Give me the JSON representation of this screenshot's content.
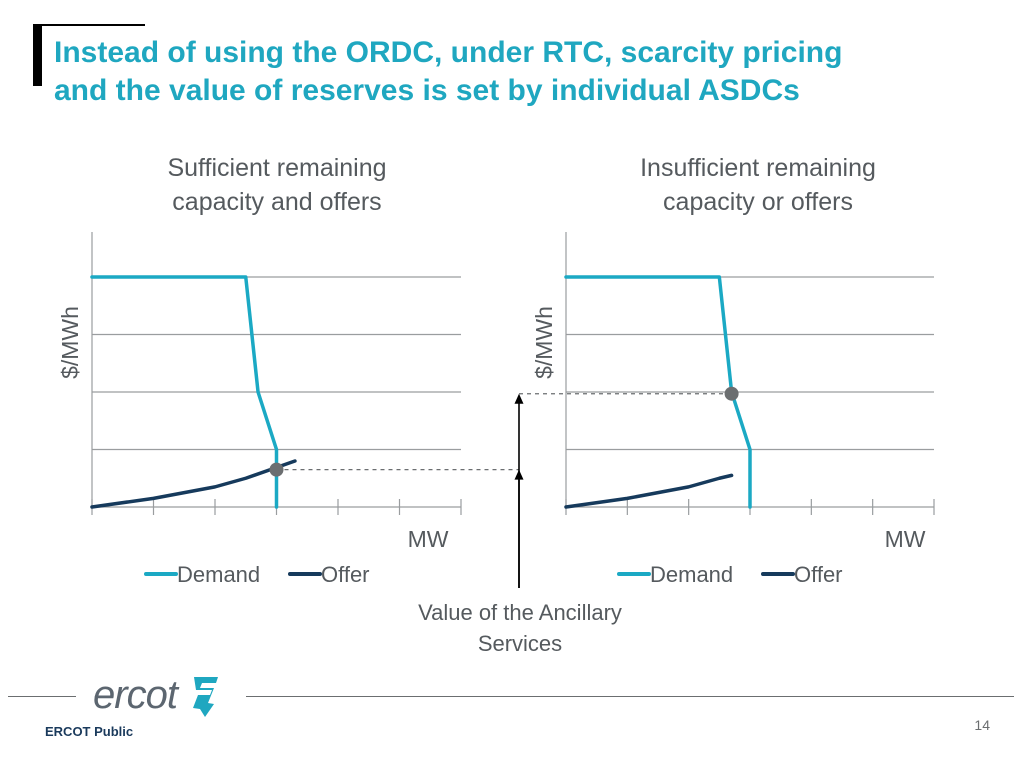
{
  "slide": {
    "title_line1": "Instead of using the ORDC, under RTC, scarcity pricing",
    "title_line2": "and the value of reserves is set by individual ASDCs",
    "annotation_line1": "Value of the Ancillary",
    "annotation_line2": "Services",
    "footer_label": "ERCOT Public",
    "page_number": "14",
    "logo_text": "ercot",
    "colors": {
      "title": "#1fa7c0",
      "demand": "#1ba9c4",
      "offer": "#163a5c",
      "grid": "#9a9d9f",
      "text": "#555a5e",
      "marker": "#6b6e70"
    }
  },
  "chart_data": [
    {
      "type": "line",
      "title_line1": "Sufficient remaining",
      "title_line2": "capacity and offers",
      "ylabel": "$/MWh",
      "xlabel": "MW",
      "xlim": [
        0,
        6
      ],
      "ylim": [
        0,
        4
      ],
      "gridlines_y": [
        1,
        2,
        3,
        4
      ],
      "x_ticks": [
        0,
        1,
        2,
        3,
        4,
        5,
        6
      ],
      "legend": [
        "Demand",
        "Offer"
      ],
      "series": [
        {
          "name": "Demand",
          "x": [
            0,
            2.5,
            2.7,
            3.0,
            3.0
          ],
          "y": [
            4,
            4,
            2,
            1,
            0
          ]
        },
        {
          "name": "Offer",
          "x": [
            0,
            1.0,
            2.0,
            2.5,
            3.3
          ],
          "y": [
            0,
            0.15,
            0.35,
            0.5,
            0.8
          ]
        }
      ],
      "intersection": {
        "x": 3.0,
        "y": 0.65
      }
    },
    {
      "type": "line",
      "title_line1": "Insufficient remaining",
      "title_line2": "capacity or offers",
      "ylabel": "$/MWh",
      "xlabel": "MW",
      "xlim": [
        0,
        6
      ],
      "ylim": [
        0,
        4
      ],
      "gridlines_y": [
        1,
        2,
        3,
        4
      ],
      "x_ticks": [
        0,
        1,
        2,
        3,
        4,
        5,
        6
      ],
      "legend": [
        "Demand",
        "Offer"
      ],
      "series": [
        {
          "name": "Demand",
          "x": [
            0,
            2.5,
            2.7,
            3.0,
            3.0
          ],
          "y": [
            4,
            4,
            2,
            1,
            0
          ]
        },
        {
          "name": "Offer",
          "x": [
            0,
            1.0,
            2.0,
            2.5,
            2.7
          ],
          "y": [
            0,
            0.15,
            0.35,
            0.5,
            0.55
          ]
        }
      ],
      "intersection": {
        "x": 2.7,
        "y": 1.97
      }
    }
  ]
}
